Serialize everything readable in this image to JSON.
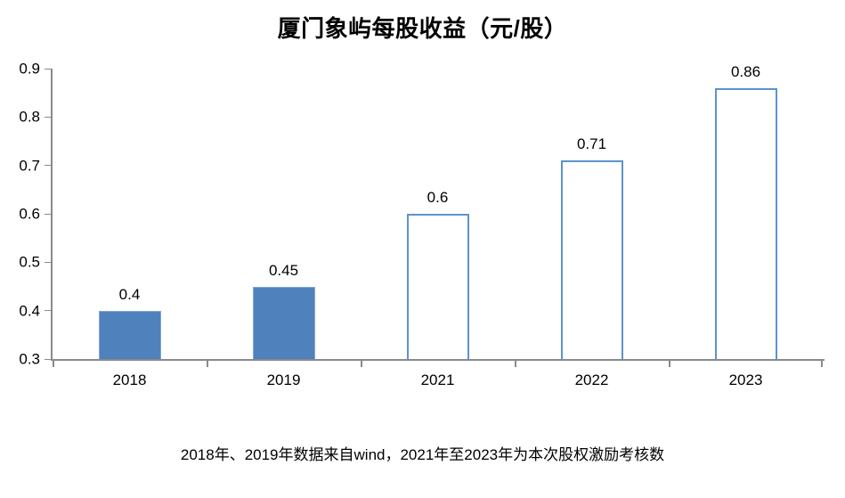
{
  "chart_data": {
    "type": "bar",
    "title": "厦门象屿每股收益（元/股）",
    "categories": [
      "2018",
      "2019",
      "2021",
      "2022",
      "2023"
    ],
    "values": [
      0.4,
      0.45,
      0.6,
      0.71,
      0.86
    ],
    "value_labels": [
      "0.4",
      "0.45",
      "0.6",
      "0.71",
      "0.86"
    ],
    "bar_styles": [
      "solid",
      "solid",
      "outline",
      "outline",
      "outline"
    ],
    "xlabel": "",
    "ylabel": "",
    "ylim": [
      0.3,
      0.9
    ],
    "yticks": [
      0.9,
      0.8,
      0.7,
      0.6,
      0.5,
      0.4,
      0.3
    ],
    "ytick_labels": [
      "0.9",
      "0.8",
      "0.7",
      "0.6",
      "0.5",
      "0.4",
      "0.3"
    ],
    "grid": false,
    "legend": "none",
    "colors": {
      "solid_fill": "#4f81bd",
      "solid_highlight": "#7fa7d6",
      "outline_stroke": "#5b93cf",
      "outline_fill": "#ffffff",
      "axis": "#8a8a8a",
      "text": "#000000"
    }
  },
  "footnote": "2018年、2019年数据来自wind，2021年至2023年为本次股权激励考核数"
}
